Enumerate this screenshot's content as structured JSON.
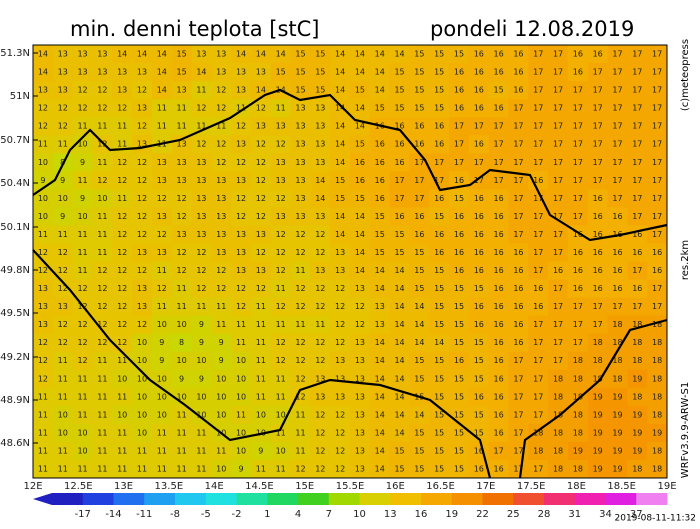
{
  "header": {
    "title": "min. denni teplota [stC]",
    "date": "pondeli 12.08.2019"
  },
  "map": {
    "lat_labels": [
      "51.3N",
      "51N",
      "50.7N",
      "50.4N",
      "50.1N",
      "49.8N",
      "49.5N",
      "49.2N",
      "48.9N",
      "48.6N"
    ],
    "lon_labels": [
      "12E",
      "12.5E",
      "13E",
      "13.5E",
      "14E",
      "14.5E",
      "15E",
      "15.5E",
      "16E",
      "16.5E",
      "17E",
      "17.5E",
      "18E",
      "18.5E",
      "19E"
    ],
    "grid": [
      [
        14,
        13,
        13,
        13,
        14,
        14,
        14,
        15,
        13,
        13,
        14,
        14,
        14,
        15,
        15,
        14,
        14,
        14,
        14,
        15,
        15,
        15,
        16,
        16,
        16,
        17,
        17,
        16,
        16,
        17,
        17,
        17
      ],
      [
        14,
        13,
        13,
        13,
        13,
        13,
        14,
        15,
        14,
        13,
        13,
        13,
        15,
        15,
        15,
        14,
        14,
        14,
        15,
        15,
        15,
        16,
        16,
        16,
        16,
        17,
        17,
        16,
        17,
        17,
        17,
        17
      ],
      [
        13,
        13,
        12,
        12,
        13,
        12,
        14,
        13,
        11,
        12,
        13,
        14,
        14,
        15,
        15,
        14,
        15,
        14,
        15,
        15,
        15,
        16,
        16,
        15,
        16,
        17,
        17,
        17,
        17,
        17,
        17,
        17
      ],
      [
        12,
        12,
        12,
        12,
        12,
        13,
        11,
        11,
        12,
        12,
        11,
        12,
        11,
        13,
        13,
        14,
        14,
        15,
        15,
        15,
        15,
        16,
        16,
        16,
        17,
        17,
        17,
        17,
        17,
        17,
        17,
        17
      ],
      [
        12,
        12,
        11,
        11,
        11,
        12,
        11,
        11,
        11,
        11,
        12,
        13,
        13,
        13,
        13,
        14,
        14,
        16,
        16,
        16,
        16,
        17,
        17,
        17,
        17,
        17,
        17,
        17,
        17,
        17,
        17,
        17
      ],
      [
        11,
        11,
        10,
        12,
        11,
        13,
        11,
        13,
        12,
        12,
        13,
        12,
        12,
        13,
        13,
        14,
        15,
        16,
        16,
        16,
        16,
        17,
        16,
        17,
        17,
        17,
        17,
        17,
        17,
        17,
        17,
        17
      ],
      [
        10,
        8,
        9,
        11,
        12,
        12,
        13,
        13,
        13,
        12,
        12,
        12,
        13,
        13,
        13,
        14,
        16,
        16,
        16,
        17,
        17,
        17,
        17,
        17,
        17,
        17,
        17,
        17,
        17,
        17,
        17,
        17
      ],
      [
        9,
        9,
        11,
        12,
        12,
        12,
        13,
        13,
        13,
        13,
        13,
        12,
        13,
        13,
        14,
        15,
        16,
        16,
        17,
        17,
        17,
        16,
        17,
        17,
        17,
        16,
        17,
        17,
        17,
        17,
        17,
        17
      ],
      [
        10,
        10,
        9,
        10,
        11,
        12,
        12,
        12,
        13,
        13,
        12,
        12,
        12,
        13,
        14,
        15,
        15,
        16,
        17,
        17,
        16,
        15,
        16,
        16,
        17,
        17,
        17,
        17,
        16,
        17,
        17,
        17
      ],
      [
        10,
        9,
        10,
        11,
        12,
        12,
        13,
        12,
        13,
        13,
        12,
        12,
        13,
        13,
        13,
        14,
        14,
        15,
        16,
        16,
        15,
        16,
        16,
        16,
        17,
        17,
        17,
        17,
        16,
        16,
        17,
        17
      ],
      [
        11,
        11,
        11,
        11,
        12,
        12,
        12,
        13,
        13,
        13,
        13,
        13,
        12,
        12,
        12,
        14,
        14,
        15,
        15,
        16,
        16,
        16,
        16,
        16,
        17,
        17,
        17,
        16,
        16,
        16,
        16,
        17
      ],
      [
        12,
        12,
        11,
        11,
        12,
        13,
        13,
        12,
        12,
        13,
        13,
        12,
        12,
        12,
        12,
        13,
        14,
        15,
        15,
        15,
        16,
        16,
        16,
        16,
        16,
        17,
        17,
        16,
        16,
        16,
        16,
        16
      ],
      [
        12,
        12,
        11,
        12,
        12,
        12,
        11,
        12,
        12,
        12,
        13,
        13,
        12,
        11,
        13,
        13,
        14,
        14,
        14,
        15,
        15,
        16,
        16,
        16,
        16,
        17,
        16,
        16,
        16,
        16,
        17,
        16
      ],
      [
        13,
        12,
        12,
        12,
        12,
        13,
        12,
        11,
        12,
        12,
        12,
        12,
        11,
        12,
        12,
        12,
        13,
        14,
        14,
        15,
        15,
        15,
        15,
        16,
        16,
        16,
        17,
        16,
        16,
        16,
        16,
        17
      ],
      [
        13,
        13,
        12,
        12,
        12,
        13,
        11,
        11,
        11,
        11,
        12,
        11,
        12,
        12,
        12,
        12,
        12,
        13,
        14,
        14,
        15,
        15,
        16,
        16,
        16,
        16,
        17,
        17,
        17,
        17,
        17,
        17
      ],
      [
        13,
        12,
        12,
        12,
        12,
        12,
        10,
        10,
        9,
        11,
        11,
        11,
        11,
        11,
        11,
        12,
        12,
        13,
        14,
        14,
        15,
        15,
        16,
        16,
        16,
        17,
        17,
        17,
        17,
        18,
        18,
        18
      ],
      [
        12,
        12,
        12,
        12,
        12,
        10,
        9,
        8,
        9,
        9,
        11,
        11,
        12,
        12,
        12,
        12,
        13,
        14,
        14,
        14,
        14,
        15,
        15,
        16,
        16,
        17,
        17,
        17,
        18,
        18,
        18,
        18
      ],
      [
        12,
        11,
        12,
        11,
        11,
        10,
        9,
        10,
        10,
        9,
        10,
        11,
        12,
        12,
        12,
        13,
        13,
        14,
        14,
        15,
        15,
        16,
        15,
        16,
        17,
        17,
        17,
        18,
        18,
        18,
        18,
        18
      ],
      [
        12,
        11,
        11,
        11,
        10,
        10,
        10,
        9,
        9,
        10,
        10,
        11,
        11,
        12,
        13,
        13,
        13,
        14,
        14,
        15,
        15,
        15,
        15,
        16,
        17,
        17,
        18,
        18,
        18,
        18,
        19,
        18
      ],
      [
        11,
        11,
        11,
        11,
        11,
        10,
        10,
        10,
        10,
        10,
        10,
        11,
        11,
        12,
        13,
        13,
        13,
        14,
        14,
        15,
        15,
        15,
        16,
        16,
        17,
        17,
        18,
        18,
        19,
        19,
        18,
        18
      ],
      [
        11,
        10,
        11,
        11,
        10,
        10,
        10,
        11,
        10,
        10,
        11,
        10,
        10,
        11,
        12,
        12,
        13,
        14,
        14,
        14,
        15,
        15,
        15,
        16,
        17,
        17,
        18,
        18,
        19,
        19,
        19,
        18
      ],
      [
        11,
        10,
        10,
        11,
        11,
        10,
        11,
        11,
        11,
        10,
        10,
        10,
        11,
        11,
        12,
        12,
        13,
        14,
        14,
        15,
        15,
        15,
        15,
        16,
        17,
        18,
        18,
        18,
        19,
        19,
        19,
        19
      ],
      [
        11,
        11,
        10,
        11,
        11,
        11,
        11,
        11,
        11,
        11,
        10,
        9,
        10,
        11,
        12,
        12,
        13,
        14,
        15,
        15,
        15,
        15,
        16,
        17,
        17,
        18,
        18,
        19,
        19,
        19,
        19,
        18
      ],
      [
        11,
        11,
        11,
        11,
        11,
        11,
        11,
        11,
        11,
        10,
        9,
        11,
        11,
        12,
        12,
        12,
        13,
        14,
        15,
        15,
        15,
        15,
        16,
        16,
        17,
        17,
        18,
        18,
        19,
        19,
        18,
        18
      ]
    ]
  },
  "colorbar": {
    "labels": [
      -17,
      -14,
      -11,
      -8,
      -5,
      -2,
      1,
      4,
      7,
      10,
      13,
      16,
      19,
      22,
      25,
      28,
      31,
      34,
      37
    ],
    "colors": [
      "#2020c0",
      "#2040e0",
      "#2070f0",
      "#20a0f0",
      "#20c8f0",
      "#20e0e0",
      "#20e0a0",
      "#20d860",
      "#40d020",
      "#a0d800",
      "#d8d000",
      "#f0c000",
      "#f5a800",
      "#f59000",
      "#f07000",
      "#f05030",
      "#f03070",
      "#f020b0",
      "#e020e0",
      "#f080f0"
    ]
  },
  "side": {
    "copyright": "(c)meteopress",
    "resolution": "res.2km",
    "model": "WRFv3.9.9-ARW-S1",
    "timestamp": "2019-08-11-11:32"
  }
}
